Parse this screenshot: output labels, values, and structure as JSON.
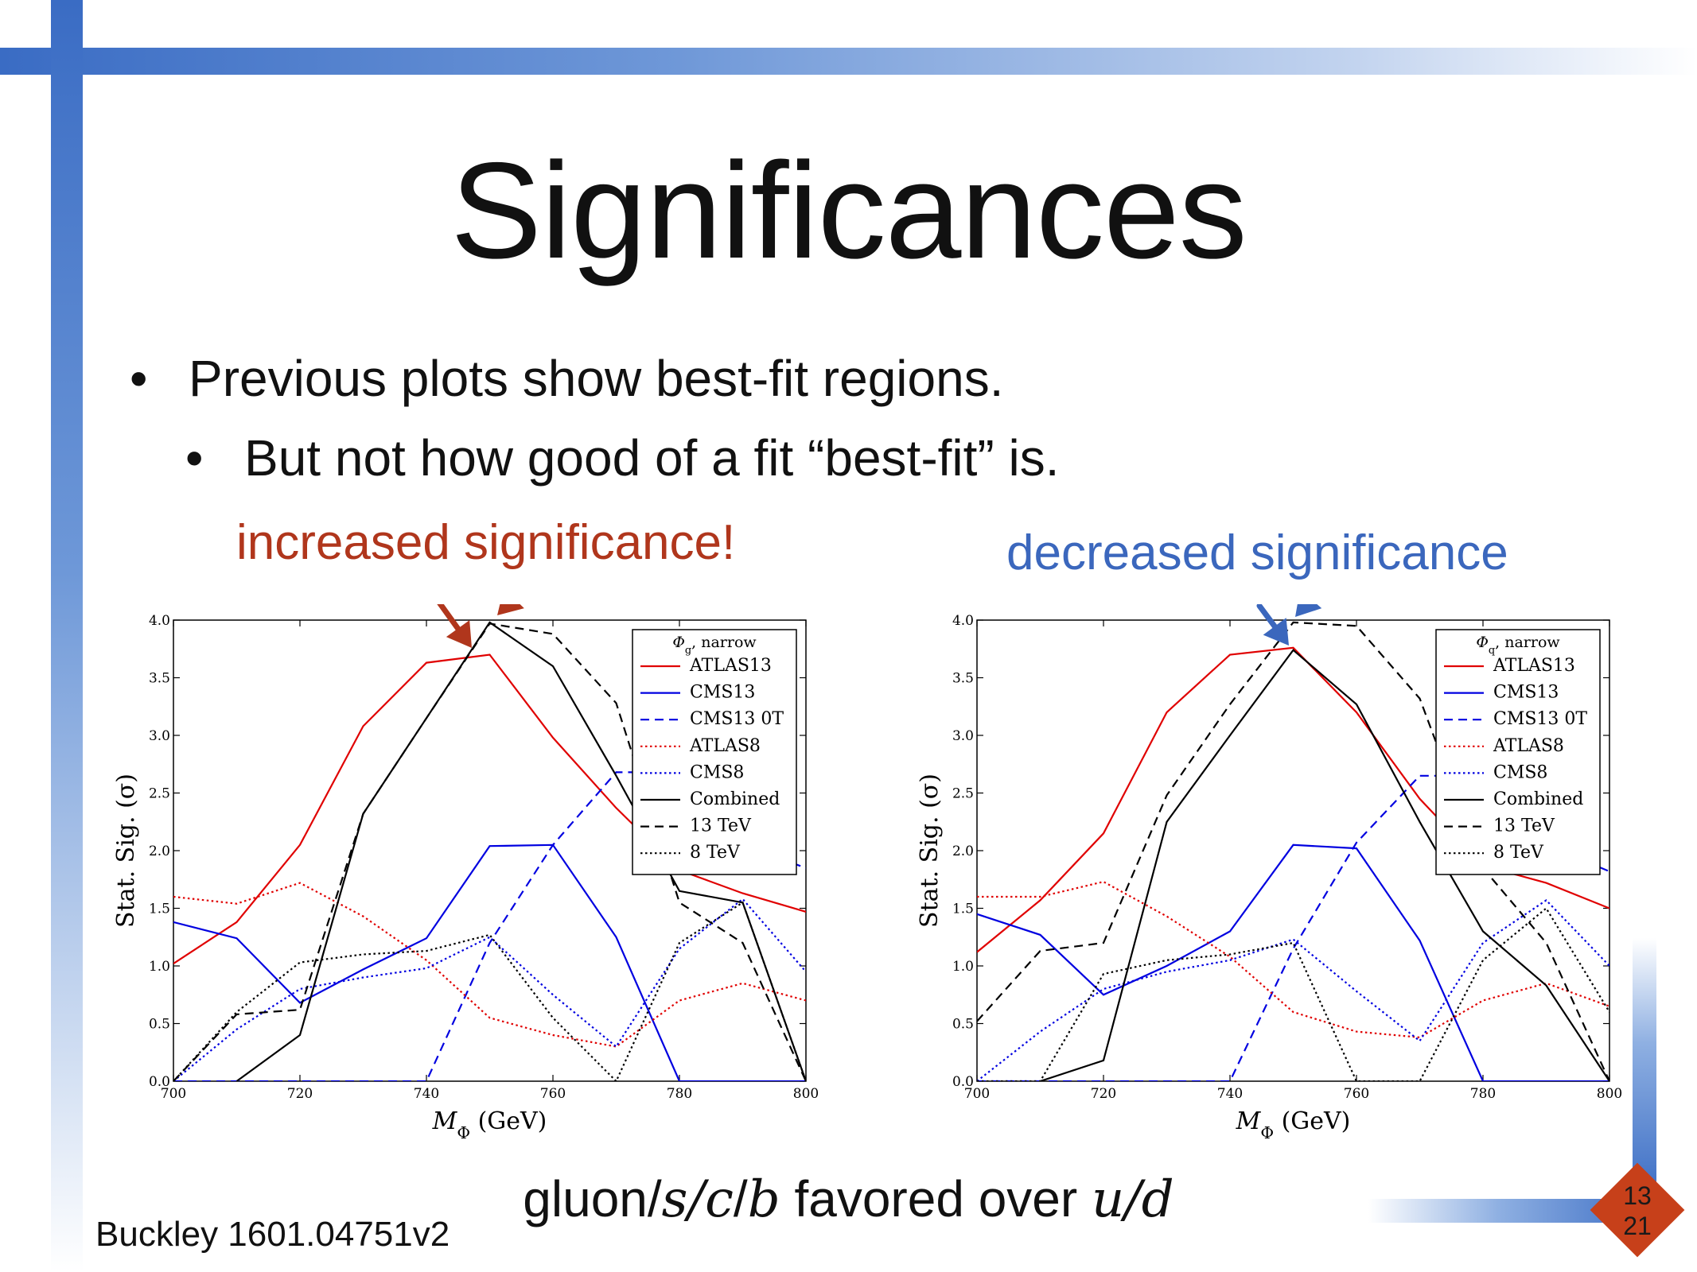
{
  "title": "Significances",
  "bullets": [
    "Previous plots show best-fit regions.",
    "But not how good of a fit “best-fit” is."
  ],
  "bullet_glyph": "•",
  "callouts": {
    "left": "increased significance!",
    "right": "decreased significance",
    "left_color": "#b0361c",
    "right_color": "#3b67bd"
  },
  "conclusion": {
    "text_1": "gluon/",
    "s": "s",
    "sep_1": "/",
    "c": "c",
    "sep_2": "/",
    "b": "b",
    "text_2": " favored over ",
    "u": "u",
    "sep_3": "/",
    "d": "d"
  },
  "citation": "Buckley 1601.04751v2",
  "page_badge": {
    "current": "13",
    "total": "21",
    "color": "#c7401a"
  },
  "chart_data": [
    {
      "type": "line",
      "xlabel": "M_Φ (GeV)",
      "ylabel": "Stat. Sig. (σ)",
      "xlim": [
        700,
        800
      ],
      "ylim": [
        0,
        4.0
      ],
      "x_ticks": [
        700,
        720,
        740,
        760,
        780,
        800
      ],
      "y_ticks": [
        "0.0",
        "0.5",
        "1.0",
        "1.5",
        "2.0",
        "2.5",
        "3.0",
        "3.5",
        "4.0"
      ],
      "grid": false,
      "legend_title": "Φ_g, narrow",
      "legend_position": "top-right",
      "x": [
        700,
        710,
        720,
        730,
        740,
        750,
        760,
        770,
        780,
        790,
        800
      ],
      "series": [
        {
          "name": "ATLAS13",
          "color": "#e00000",
          "dash": "solid",
          "values": [
            1.02,
            1.38,
            2.05,
            3.08,
            3.63,
            3.7,
            2.98,
            2.37,
            1.83,
            1.63,
            1.47
          ]
        },
        {
          "name": "CMS13",
          "color": "#0000e0",
          "dash": "solid",
          "values": [
            1.38,
            1.24,
            0.68,
            0.97,
            1.24,
            2.04,
            2.05,
            1.25,
            0.0,
            0.0,
            0.0
          ]
        },
        {
          "name": "CMS13 0T",
          "color": "#0000e0",
          "dash": "dashed",
          "values": [
            0.0,
            0.0,
            0.0,
            0.0,
            0.0,
            1.2,
            2.05,
            2.68,
            2.68,
            2.05,
            1.85
          ]
        },
        {
          "name": "ATLAS8",
          "color": "#e00000",
          "dash": "dotted",
          "values": [
            1.6,
            1.54,
            1.72,
            1.43,
            1.05,
            0.55,
            0.4,
            0.3,
            0.7,
            0.85,
            0.7
          ]
        },
        {
          "name": "CMS8",
          "color": "#0000e0",
          "dash": "dotted",
          "values": [
            0.0,
            0.45,
            0.8,
            0.9,
            0.98,
            1.25,
            0.75,
            0.3,
            1.15,
            1.58,
            0.95
          ]
        },
        {
          "name": "Combined",
          "color": "#000000",
          "dash": "solid",
          "values": [
            null,
            0.0,
            0.4,
            2.32,
            3.15,
            3.98,
            3.6,
            2.65,
            1.65,
            1.55,
            0.0
          ]
        },
        {
          "name": "13 TeV",
          "color": "#000000",
          "dash": "dashed",
          "values": [
            0.0,
            0.58,
            0.62,
            2.32,
            3.15,
            3.97,
            3.88,
            3.28,
            1.55,
            1.2,
            0.0
          ]
        },
        {
          "name": "8 TeV",
          "color": "#000000",
          "dash": "dotted",
          "values": [
            0.0,
            0.6,
            1.03,
            1.1,
            1.13,
            1.27,
            0.55,
            0.0,
            1.2,
            1.55,
            0.0
          ]
        }
      ]
    },
    {
      "type": "line",
      "xlabel": "M_Φ (GeV)",
      "ylabel": "Stat. Sig. (σ)",
      "xlim": [
        700,
        800
      ],
      "ylim": [
        0,
        4.0
      ],
      "x_ticks": [
        700,
        720,
        740,
        760,
        780,
        800
      ],
      "y_ticks": [
        "0.0",
        "0.5",
        "1.0",
        "1.5",
        "2.0",
        "2.5",
        "3.0",
        "3.5",
        "4.0"
      ],
      "grid": false,
      "legend_title": "Φ_q, narrow",
      "legend_position": "top-right",
      "x": [
        700,
        710,
        720,
        730,
        740,
        750,
        760,
        770,
        780,
        790,
        800
      ],
      "series": [
        {
          "name": "ATLAS13",
          "color": "#e00000",
          "dash": "solid",
          "values": [
            1.12,
            1.57,
            2.15,
            3.2,
            3.7,
            3.76,
            3.2,
            2.45,
            1.87,
            1.72,
            1.5
          ]
        },
        {
          "name": "CMS13",
          "color": "#0000e0",
          "dash": "solid",
          "values": [
            1.45,
            1.27,
            0.75,
            1.0,
            1.3,
            2.05,
            2.02,
            1.22,
            0.0,
            0.0,
            0.0
          ]
        },
        {
          "name": "CMS13 0T",
          "color": "#0000e0",
          "dash": "dashed",
          "values": [
            0.0,
            0.0,
            0.0,
            0.0,
            0.0,
            1.15,
            2.07,
            2.65,
            2.65,
            2.05,
            1.82
          ]
        },
        {
          "name": "ATLAS8",
          "color": "#e00000",
          "dash": "dotted",
          "values": [
            1.6,
            1.6,
            1.73,
            1.43,
            1.08,
            0.6,
            0.43,
            0.38,
            0.7,
            0.85,
            0.65
          ]
        },
        {
          "name": "CMS8",
          "color": "#0000e0",
          "dash": "dotted",
          "values": [
            0.0,
            0.43,
            0.8,
            0.95,
            1.05,
            1.23,
            0.78,
            0.35,
            1.2,
            1.57,
            1.0
          ]
        },
        {
          "name": "Combined",
          "color": "#000000",
          "dash": "solid",
          "values": [
            null,
            0.0,
            0.18,
            2.25,
            3.0,
            3.74,
            3.27,
            2.25,
            1.3,
            0.83,
            0.0
          ]
        },
        {
          "name": "13 TeV",
          "color": "#000000",
          "dash": "dashed",
          "values": [
            0.52,
            1.13,
            1.2,
            2.48,
            3.27,
            3.98,
            3.95,
            3.32,
            1.85,
            1.2,
            0.0
          ]
        },
        {
          "name": "8 TeV",
          "color": "#000000",
          "dash": "dotted",
          "values": [
            0.0,
            0.0,
            0.93,
            1.05,
            1.1,
            1.2,
            0.0,
            0.0,
            1.05,
            1.5,
            0.6
          ]
        }
      ]
    }
  ]
}
